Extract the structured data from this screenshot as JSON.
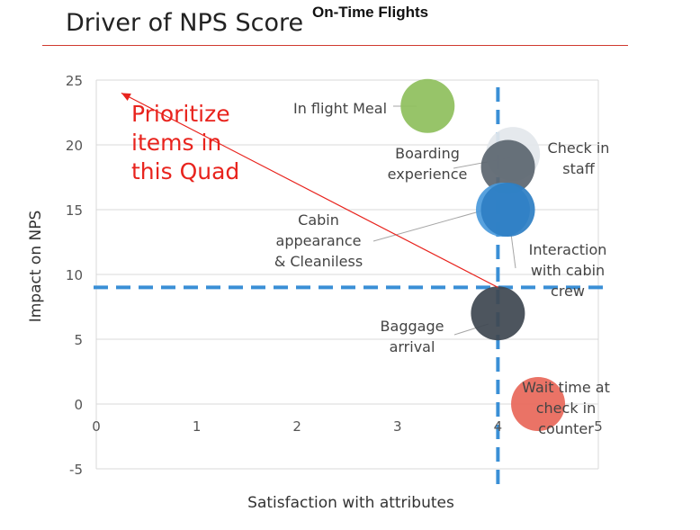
{
  "header": {
    "title": "Driver of NPS Score",
    "subtitle": "On-Time Flights"
  },
  "annotation": {
    "callout_lines": [
      "Prioritize",
      "items in",
      "this Quad"
    ],
    "color": "#e8231d",
    "arrow_from": [
      4,
      9
    ],
    "arrow_to": [
      0.25,
      24
    ]
  },
  "chart_data": {
    "type": "scatter",
    "xlabel": "Satisfaction with attributes",
    "ylabel": "Impact on NPS",
    "xlim": [
      0,
      5
    ],
    "ylim": [
      -5,
      25
    ],
    "xticks": [
      0,
      1,
      2,
      3,
      4,
      5
    ],
    "yticks": [
      -5,
      0,
      5,
      10,
      15,
      20,
      25
    ],
    "grid": "horizontal",
    "legend": "none",
    "thresholds": {
      "x": 4,
      "y": 9,
      "color": "#3a8fd6"
    },
    "points": [
      {
        "label": [
          "In flight Meal"
        ],
        "x": 3.3,
        "y": 23,
        "color": "#8fbf5e"
      },
      {
        "label": [
          "Check in",
          "staff"
        ],
        "x": 4.15,
        "y": 19.3,
        "color": "#e3e7ec"
      },
      {
        "label": [
          "Boarding",
          "experience"
        ],
        "x": 4.1,
        "y": 18.3,
        "color": "#5c6670"
      },
      {
        "label": [
          "Cabin",
          "appearance",
          "& Cleaniless"
        ],
        "x": 4.05,
        "y": 15,
        "color": "#4a9adb"
      },
      {
        "label": [
          "Interaction",
          "with cabin",
          "crew"
        ],
        "x": 4.1,
        "y": 15,
        "color": "#2e7fc4"
      },
      {
        "label": [
          "Baggage",
          "arrival"
        ],
        "x": 4,
        "y": 7,
        "color": "#3f4852"
      },
      {
        "label": [
          "Wait time at",
          "check in",
          "counter"
        ],
        "x": 4.4,
        "y": 0,
        "color": "#e8685a"
      }
    ]
  }
}
